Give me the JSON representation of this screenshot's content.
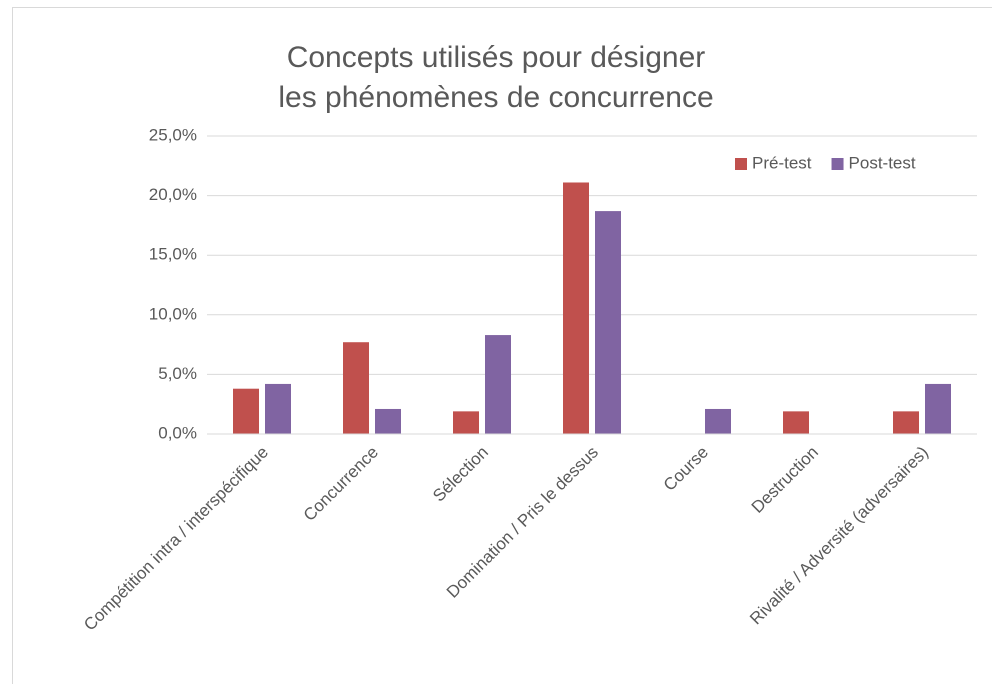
{
  "chart_data": {
    "type": "bar",
    "title": "Concepts utilisés pour désigner les phénomènes de concurrence",
    "categories": [
      "Compétition intra / interspécifique",
      "Concurrence",
      "Sélection",
      "Domination / Pris le dessus",
      "Course",
      "Destruction",
      "Rivalité / Adversité (adversaires)"
    ],
    "series": [
      {
        "name": "Pré-test",
        "color": "#c0504d",
        "values": [
          3.8,
          7.7,
          1.9,
          21.1,
          0,
          1.9,
          1.9
        ]
      },
      {
        "name": "Post-test",
        "color": "#8064a2",
        "values": [
          4.2,
          2.1,
          8.3,
          18.7,
          2.1,
          0,
          4.2
        ]
      }
    ],
    "ylim": [
      0,
      25
    ],
    "yticks": [
      {
        "value": 0,
        "label": "0,0%"
      },
      {
        "value": 5,
        "label": "5,0%"
      },
      {
        "value": 10,
        "label": "10,0%"
      },
      {
        "value": 15,
        "label": "15,0%"
      },
      {
        "value": 20,
        "label": "20,0%"
      },
      {
        "value": 25,
        "label": "25,0%"
      }
    ],
    "grid": true,
    "legend": "top-right"
  }
}
